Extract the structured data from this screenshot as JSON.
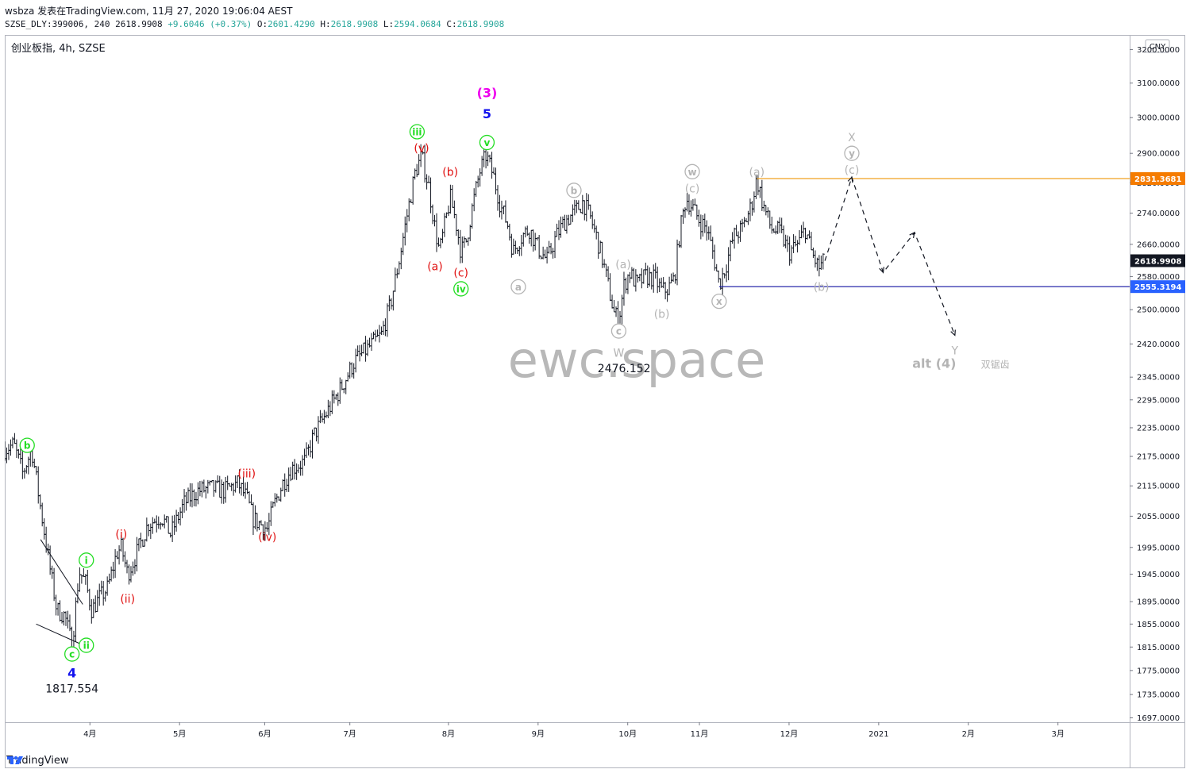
{
  "header": {
    "line1": "wsbza 发表在TradingView.com, 11月 27, 2020 19:06:04 AEST",
    "symbol": "SZSE_DLY:399006, 240",
    "last": "2618.9908",
    "change": "+9.6046 (+0.37%)",
    "open_label": "O:",
    "open": "2601.4290",
    "high_label": "H:",
    "high": "2618.9908",
    "low_label": "L:",
    "low": "2594.0684",
    "close_label": "C:",
    "close": "2618.9908"
  },
  "chart_title": "创业板指, 4h, SZSE",
  "currency": "CNY",
  "watermark": "ewc.space",
  "footer": {
    "brand": "TradingView"
  },
  "colors": {
    "green": "#22dd22",
    "red": "#e01010",
    "blue": "#1010ee",
    "magenta": "#ee00ee",
    "gray": "#b4b4b4",
    "orange": "#f0a020",
    "navy": "#1010a0",
    "dark": "#131722",
    "price_bg": "#131722",
    "support_bg": "#2962ff",
    "resist_bg": "#f57c00"
  },
  "chart_data": {
    "type": "bar",
    "title": "创业板指, 4h, SZSE",
    "y_axis": {
      "scale": "log",
      "ticks": [
        3200,
        3100,
        3000,
        2900,
        2820,
        2740,
        2660,
        2580,
        2500,
        2420,
        2345,
        2295,
        2235,
        2175,
        2115,
        2055,
        1995,
        1945,
        1895,
        1855,
        1815,
        1775,
        1735,
        1697
      ],
      "tick_labels": [
        "3200.0000",
        "3100.0000",
        "3000.0000",
        "2900.0000",
        "2820.0000",
        "2740.0000",
        "2660.0000",
        "2580.0000",
        "2500.0000",
        "2420.0000",
        "2345.0000",
        "2295.0000",
        "2235.0000",
        "2175.0000",
        "2115.0000",
        "2055.0000",
        "1995.0000",
        "1945.0000",
        "1895.0000",
        "1855.0000",
        "1815.0000",
        "1775.0000",
        "1735.0000",
        "1697.0000"
      ]
    },
    "x_axis": {
      "ticks": [
        {
          "label": "4月",
          "t": 0.7
        },
        {
          "label": "5月",
          "t": 1.7
        },
        {
          "label": "6月",
          "t": 2.65
        },
        {
          "label": "7月",
          "t": 3.6
        },
        {
          "label": "8月",
          "t": 4.7
        },
        {
          "label": "9月",
          "t": 5.7
        },
        {
          "label": "10月",
          "t": 6.7
        },
        {
          "label": "11月",
          "t": 7.5
        },
        {
          "label": "12月",
          "t": 8.5
        },
        {
          "label": "2021",
          "t": 9.5
        },
        {
          "label": "2月",
          "t": 10.5
        },
        {
          "label": "3月",
          "t": 11.5
        }
      ],
      "range": [
        -0.25,
        12.3
      ]
    },
    "price_path": [
      [
        -0.25,
        2190
      ],
      [
        -0.15,
        2200
      ],
      [
        -0.05,
        2140
      ],
      [
        0.05,
        2190
      ],
      [
        0.15,
        2070
      ],
      [
        0.25,
        1960
      ],
      [
        0.33,
        1880
      ],
      [
        0.42,
        1870
      ],
      [
        0.5,
        1817.554
      ],
      [
        0.58,
        1950
      ],
      [
        0.65,
        1930
      ],
      [
        0.72,
        1880
      ],
      [
        0.8,
        1900
      ],
      [
        0.9,
        1920
      ],
      [
        1.0,
        1985
      ],
      [
        1.05,
        1995
      ],
      [
        1.12,
        1945
      ],
      [
        1.2,
        1975
      ],
      [
        1.35,
        2040
      ],
      [
        1.5,
        2055
      ],
      [
        1.6,
        2020
      ],
      [
        1.75,
        2080
      ],
      [
        1.9,
        2105
      ],
      [
        2.05,
        2110
      ],
      [
        2.2,
        2105
      ],
      [
        2.35,
        2120
      ],
      [
        2.45,
        2090
      ],
      [
        2.52,
        2050
      ],
      [
        2.6,
        2040
      ],
      [
        2.68,
        2030
      ],
      [
        2.75,
        2075
      ],
      [
        2.85,
        2120
      ],
      [
        2.95,
        2150
      ],
      [
        3.1,
        2165
      ],
      [
        3.2,
        2220
      ],
      [
        3.35,
        2270
      ],
      [
        3.5,
        2320
      ],
      [
        3.65,
        2380
      ],
      [
        3.8,
        2410
      ],
      [
        3.95,
        2440
      ],
      [
        4.05,
        2510
      ],
      [
        4.15,
        2620
      ],
      [
        4.25,
        2750
      ],
      [
        4.33,
        2850
      ],
      [
        4.4,
        2892
      ],
      [
        4.48,
        2810
      ],
      [
        4.55,
        2700
      ],
      [
        4.6,
        2640
      ],
      [
        4.65,
        2700
      ],
      [
        4.72,
        2780
      ],
      [
        4.78,
        2720
      ],
      [
        4.84,
        2640
      ],
      [
        4.9,
        2670
      ],
      [
        4.97,
        2760
      ],
      [
        5.05,
        2850
      ],
      [
        5.12,
        2895
      ],
      [
        5.2,
        2840
      ],
      [
        5.28,
        2760
      ],
      [
        5.36,
        2710
      ],
      [
        5.42,
        2640
      ],
      [
        5.5,
        2675
      ],
      [
        5.6,
        2700
      ],
      [
        5.7,
        2650
      ],
      [
        5.8,
        2620
      ],
      [
        5.9,
        2680
      ],
      [
        6.0,
        2720
      ],
      [
        6.1,
        2740
      ],
      [
        6.2,
        2770
      ],
      [
        6.28,
        2730
      ],
      [
        6.35,
        2680
      ],
      [
        6.42,
        2620
      ],
      [
        6.5,
        2540
      ],
      [
        6.55,
        2490
      ],
      [
        6.6,
        2476.152
      ],
      [
        6.66,
        2560
      ],
      [
        6.72,
        2590
      ],
      [
        6.8,
        2560
      ],
      [
        6.9,
        2580
      ],
      [
        7.0,
        2575
      ],
      [
        7.08,
        2545
      ],
      [
        7.15,
        2550
      ],
      [
        7.22,
        2575
      ],
      [
        7.28,
        2690
      ],
      [
        7.35,
        2780
      ],
      [
        7.42,
        2755
      ],
      [
        7.5,
        2720
      ],
      [
        7.58,
        2700
      ],
      [
        7.65,
        2640
      ],
      [
        7.72,
        2560
      ],
      [
        7.8,
        2610
      ],
      [
        7.88,
        2680
      ],
      [
        7.98,
        2700
      ],
      [
        8.08,
        2760
      ],
      [
        8.14,
        2831.3681
      ],
      [
        8.2,
        2770
      ],
      [
        8.3,
        2700
      ],
      [
        8.4,
        2690
      ],
      [
        8.5,
        2640
      ],
      [
        8.6,
        2660
      ],
      [
        8.68,
        2700
      ],
      [
        8.75,
        2640
      ],
      [
        8.83,
        2600
      ],
      [
        8.9,
        2618.9908
      ]
    ],
    "projection": [
      [
        8.9,
        2618.9908
      ],
      [
        9.2,
        2835
      ],
      [
        9.55,
        2590
      ],
      [
        9.9,
        2690
      ],
      [
        10.35,
        2440
      ]
    ],
    "levels": {
      "resistance": {
        "value": 2831.3681,
        "label": "2831.3681",
        "from_t": 8.14
      },
      "support": {
        "value": 2555.3194,
        "label": "2555.3194",
        "from_t": 7.72
      },
      "last_price": {
        "value": 2618.9908,
        "label": "2618.9908"
      }
    },
    "annotations": [
      {
        "text": "b",
        "t": 0.0,
        "v": 2198,
        "style": "circle",
        "color": "green"
      },
      {
        "text": "c",
        "t": 0.5,
        "v": 1803,
        "style": "circle",
        "color": "green"
      },
      {
        "text": "4",
        "t": 0.5,
        "v": 1770,
        "style": "plain",
        "color": "blue"
      },
      {
        "text": "1817.554",
        "t": 0.5,
        "v": 1745,
        "style": "plain",
        "color": "dark"
      },
      {
        "text": "ii",
        "t": 0.66,
        "v": 1818,
        "style": "circle",
        "color": "green"
      },
      {
        "text": "i",
        "t": 0.66,
        "v": 1971,
        "style": "circle",
        "color": "green"
      },
      {
        "text": "(i)",
        "t": 1.05,
        "v": 2020,
        "style": "plain",
        "color": "red"
      },
      {
        "text": "(ii)",
        "t": 1.12,
        "v": 1900,
        "style": "plain",
        "color": "red"
      },
      {
        "text": "(iii)",
        "t": 2.45,
        "v": 2140,
        "style": "plain",
        "color": "red"
      },
      {
        "text": "(iv)",
        "t": 2.68,
        "v": 2015,
        "style": "plain",
        "color": "red"
      },
      {
        "text": "iii",
        "t": 4.35,
        "v": 2960,
        "style": "circle",
        "color": "green"
      },
      {
        "text": "(v)",
        "t": 4.4,
        "v": 2915,
        "style": "plain",
        "color": "red"
      },
      {
        "text": "(b)",
        "t": 4.72,
        "v": 2850,
        "style": "plain",
        "color": "red"
      },
      {
        "text": "(a)",
        "t": 4.55,
        "v": 2605,
        "style": "plain",
        "color": "red"
      },
      {
        "text": "(c)",
        "t": 4.84,
        "v": 2590,
        "style": "plain",
        "color": "red"
      },
      {
        "text": "iv",
        "t": 4.84,
        "v": 2550,
        "style": "circle",
        "color": "green"
      },
      {
        "text": "(3)",
        "t": 5.13,
        "v": 3070,
        "style": "plain",
        "color": "magenta"
      },
      {
        "text": "5",
        "t": 5.13,
        "v": 3010,
        "style": "plain",
        "color": "blue"
      },
      {
        "text": "v",
        "t": 5.13,
        "v": 2930,
        "style": "circle",
        "color": "green"
      },
      {
        "text": "a",
        "t": 5.48,
        "v": 2555,
        "style": "circle",
        "color": "gray"
      },
      {
        "text": "b",
        "t": 6.1,
        "v": 2800,
        "style": "circle",
        "color": "gray"
      },
      {
        "text": "(a)",
        "t": 6.65,
        "v": 2610,
        "style": "plain",
        "color": "gray"
      },
      {
        "text": "c",
        "t": 6.6,
        "v": 2450,
        "style": "circle",
        "color": "gray"
      },
      {
        "text": "W",
        "t": 6.6,
        "v": 2400,
        "style": "plain",
        "color": "gray"
      },
      {
        "text": "2476.152",
        "t": 6.66,
        "v": 2365,
        "style": "plain",
        "color": "dark"
      },
      {
        "text": "(b)",
        "t": 7.08,
        "v": 2490,
        "style": "plain",
        "color": "gray"
      },
      {
        "text": "w",
        "t": 7.42,
        "v": 2850,
        "style": "circle",
        "color": "gray"
      },
      {
        "text": "(c)",
        "t": 7.42,
        "v": 2805,
        "style": "plain",
        "color": "gray"
      },
      {
        "text": "x",
        "t": 7.72,
        "v": 2520,
        "style": "circle",
        "color": "gray"
      },
      {
        "text": "(a)",
        "t": 8.14,
        "v": 2850,
        "style": "plain",
        "color": "gray"
      },
      {
        "text": "(b)",
        "t": 8.86,
        "v": 2555,
        "style": "plain",
        "color": "gray"
      },
      {
        "text": "X",
        "t": 9.2,
        "v": 2945,
        "style": "plain",
        "color": "gray"
      },
      {
        "text": "y",
        "t": 9.2,
        "v": 2900,
        "style": "circle",
        "color": "gray"
      },
      {
        "text": "(c)",
        "t": 9.2,
        "v": 2855,
        "style": "plain",
        "color": "gray"
      },
      {
        "text": "Y",
        "t": 10.35,
        "v": 2405,
        "style": "plain",
        "color": "gray"
      },
      {
        "text": "alt (4)",
        "t": 10.12,
        "v": 2375,
        "style": "plain",
        "color": "gray"
      },
      {
        "text": "双锯齿",
        "t": 10.8,
        "v": 2375,
        "style": "plain",
        "color": "gray"
      }
    ]
  }
}
